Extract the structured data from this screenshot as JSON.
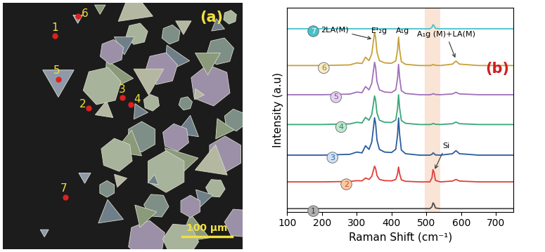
{
  "chart_data": {
    "type": "line",
    "panel_label": "(b)",
    "xlabel": "Raman Shift (cm⁻¹)",
    "ylabel": "Intensity (a.u)",
    "xlim": [
      100,
      750
    ],
    "xticks": [
      100,
      200,
      300,
      400,
      500,
      600,
      700
    ],
    "ylim": [
      0,
      10
    ],
    "tick_labels": "x",
    "highlight_band": [
      495,
      540
    ],
    "x": [
      100,
      200,
      280,
      300,
      315,
      325,
      335,
      343,
      348,
      351,
      354,
      358,
      365,
      380,
      400,
      412,
      417,
      420,
      423,
      428,
      440,
      480,
      510,
      516,
      519,
      522,
      526,
      540,
      575,
      585,
      595,
      650,
      750
    ],
    "series": [
      {
        "name": "1",
        "color": "#4d4d4d",
        "values": [
          0.15,
          0.15,
          0.15,
          0.15,
          0.15,
          0.15,
          0.15,
          0.15,
          0.15,
          0.15,
          0.15,
          0.15,
          0.15,
          0.15,
          0.15,
          0.15,
          0.15,
          0.15,
          0.15,
          0.15,
          0.15,
          0.15,
          0.15,
          0.24,
          0.43,
          0.37,
          0.18,
          0.15,
          0.15,
          0.15,
          0.15,
          0.15,
          0.15
        ]
      },
      {
        "name": "2",
        "color": "#e0403a",
        "values": [
          1.46,
          1.46,
          1.48,
          1.52,
          1.51,
          1.65,
          1.58,
          1.73,
          2.04,
          2.23,
          2.12,
          1.77,
          1.58,
          1.52,
          1.51,
          1.58,
          1.85,
          2.19,
          1.87,
          1.56,
          1.49,
          1.46,
          1.46,
          1.66,
          2.06,
          1.93,
          1.53,
          1.46,
          1.5,
          1.58,
          1.5,
          1.46,
          1.46
        ]
      },
      {
        "name": "3",
        "color": "#2b5c9e",
        "values": [
          2.77,
          2.77,
          2.81,
          2.92,
          2.88,
          3.23,
          3.05,
          3.41,
          4.14,
          4.6,
          4.33,
          3.5,
          3.05,
          2.92,
          2.9,
          3.06,
          3.74,
          4.59,
          3.79,
          3.02,
          2.84,
          2.77,
          2.77,
          2.81,
          2.88,
          2.85,
          2.78,
          2.77,
          2.84,
          2.99,
          2.84,
          2.77,
          2.77
        ]
      },
      {
        "name": "4",
        "color": "#3aa67a",
        "values": [
          4.27,
          4.27,
          4.3,
          4.38,
          4.35,
          4.62,
          4.48,
          4.76,
          5.32,
          5.67,
          5.46,
          4.83,
          4.48,
          4.38,
          4.37,
          4.49,
          5.04,
          5.73,
          5.08,
          4.47,
          4.33,
          4.27,
          4.27,
          4.29,
          4.32,
          4.31,
          4.28,
          4.27,
          4.31,
          4.39,
          4.31,
          4.27,
          4.27
        ]
      },
      {
        "name": "5",
        "color": "#a070b8",
        "values": [
          5.73,
          5.73,
          5.76,
          5.86,
          5.83,
          6.13,
          5.97,
          6.29,
          6.92,
          7.32,
          7.08,
          6.37,
          5.97,
          5.86,
          5.84,
          5.97,
          6.53,
          7.22,
          6.57,
          5.93,
          5.79,
          5.73,
          5.73,
          5.75,
          5.78,
          5.77,
          5.74,
          5.73,
          5.77,
          5.85,
          5.77,
          5.73,
          5.73
        ]
      },
      {
        "name": "6",
        "color": "#c9a03a",
        "values": [
          7.16,
          7.16,
          7.19,
          7.29,
          7.26,
          7.57,
          7.4,
          7.73,
          8.38,
          8.78,
          8.54,
          7.81,
          7.4,
          7.29,
          7.27,
          7.39,
          7.9,
          8.55,
          7.94,
          7.35,
          7.22,
          7.16,
          7.16,
          7.18,
          7.21,
          7.2,
          7.17,
          7.16,
          7.23,
          7.38,
          7.23,
          7.16,
          7.16
        ]
      },
      {
        "name": "7",
        "color": "#46c2cc",
        "values": [
          8.96,
          8.96,
          8.96,
          8.96,
          8.96,
          8.96,
          8.96,
          8.96,
          8.96,
          8.96,
          8.96,
          8.96,
          8.96,
          8.96,
          8.96,
          8.96,
          8.96,
          8.96,
          8.96,
          8.96,
          8.96,
          8.96,
          8.96,
          9.03,
          9.16,
          9.11,
          8.98,
          8.96,
          8.96,
          8.96,
          8.96,
          8.96,
          8.96
        ]
      }
    ],
    "annotations": [
      {
        "text": "2LA(M)",
        "x": 348,
        "y": 8.45
      },
      {
        "text": "E¹₂g",
        "x": 354,
        "y": 8.6
      },
      {
        "text": "A₁g",
        "x": 421,
        "y": 8.5
      },
      {
        "text": "A₁g (M)+LA(M)",
        "x": 585,
        "y": 7.45
      },
      {
        "text": "Si",
        "x": 522,
        "y": 2.0
      }
    ]
  },
  "image_panel": {
    "panel_label": "(a)",
    "scale_bar": "100 μm",
    "points": [
      "1",
      "2",
      "3",
      "4",
      "5",
      "6",
      "7"
    ]
  }
}
